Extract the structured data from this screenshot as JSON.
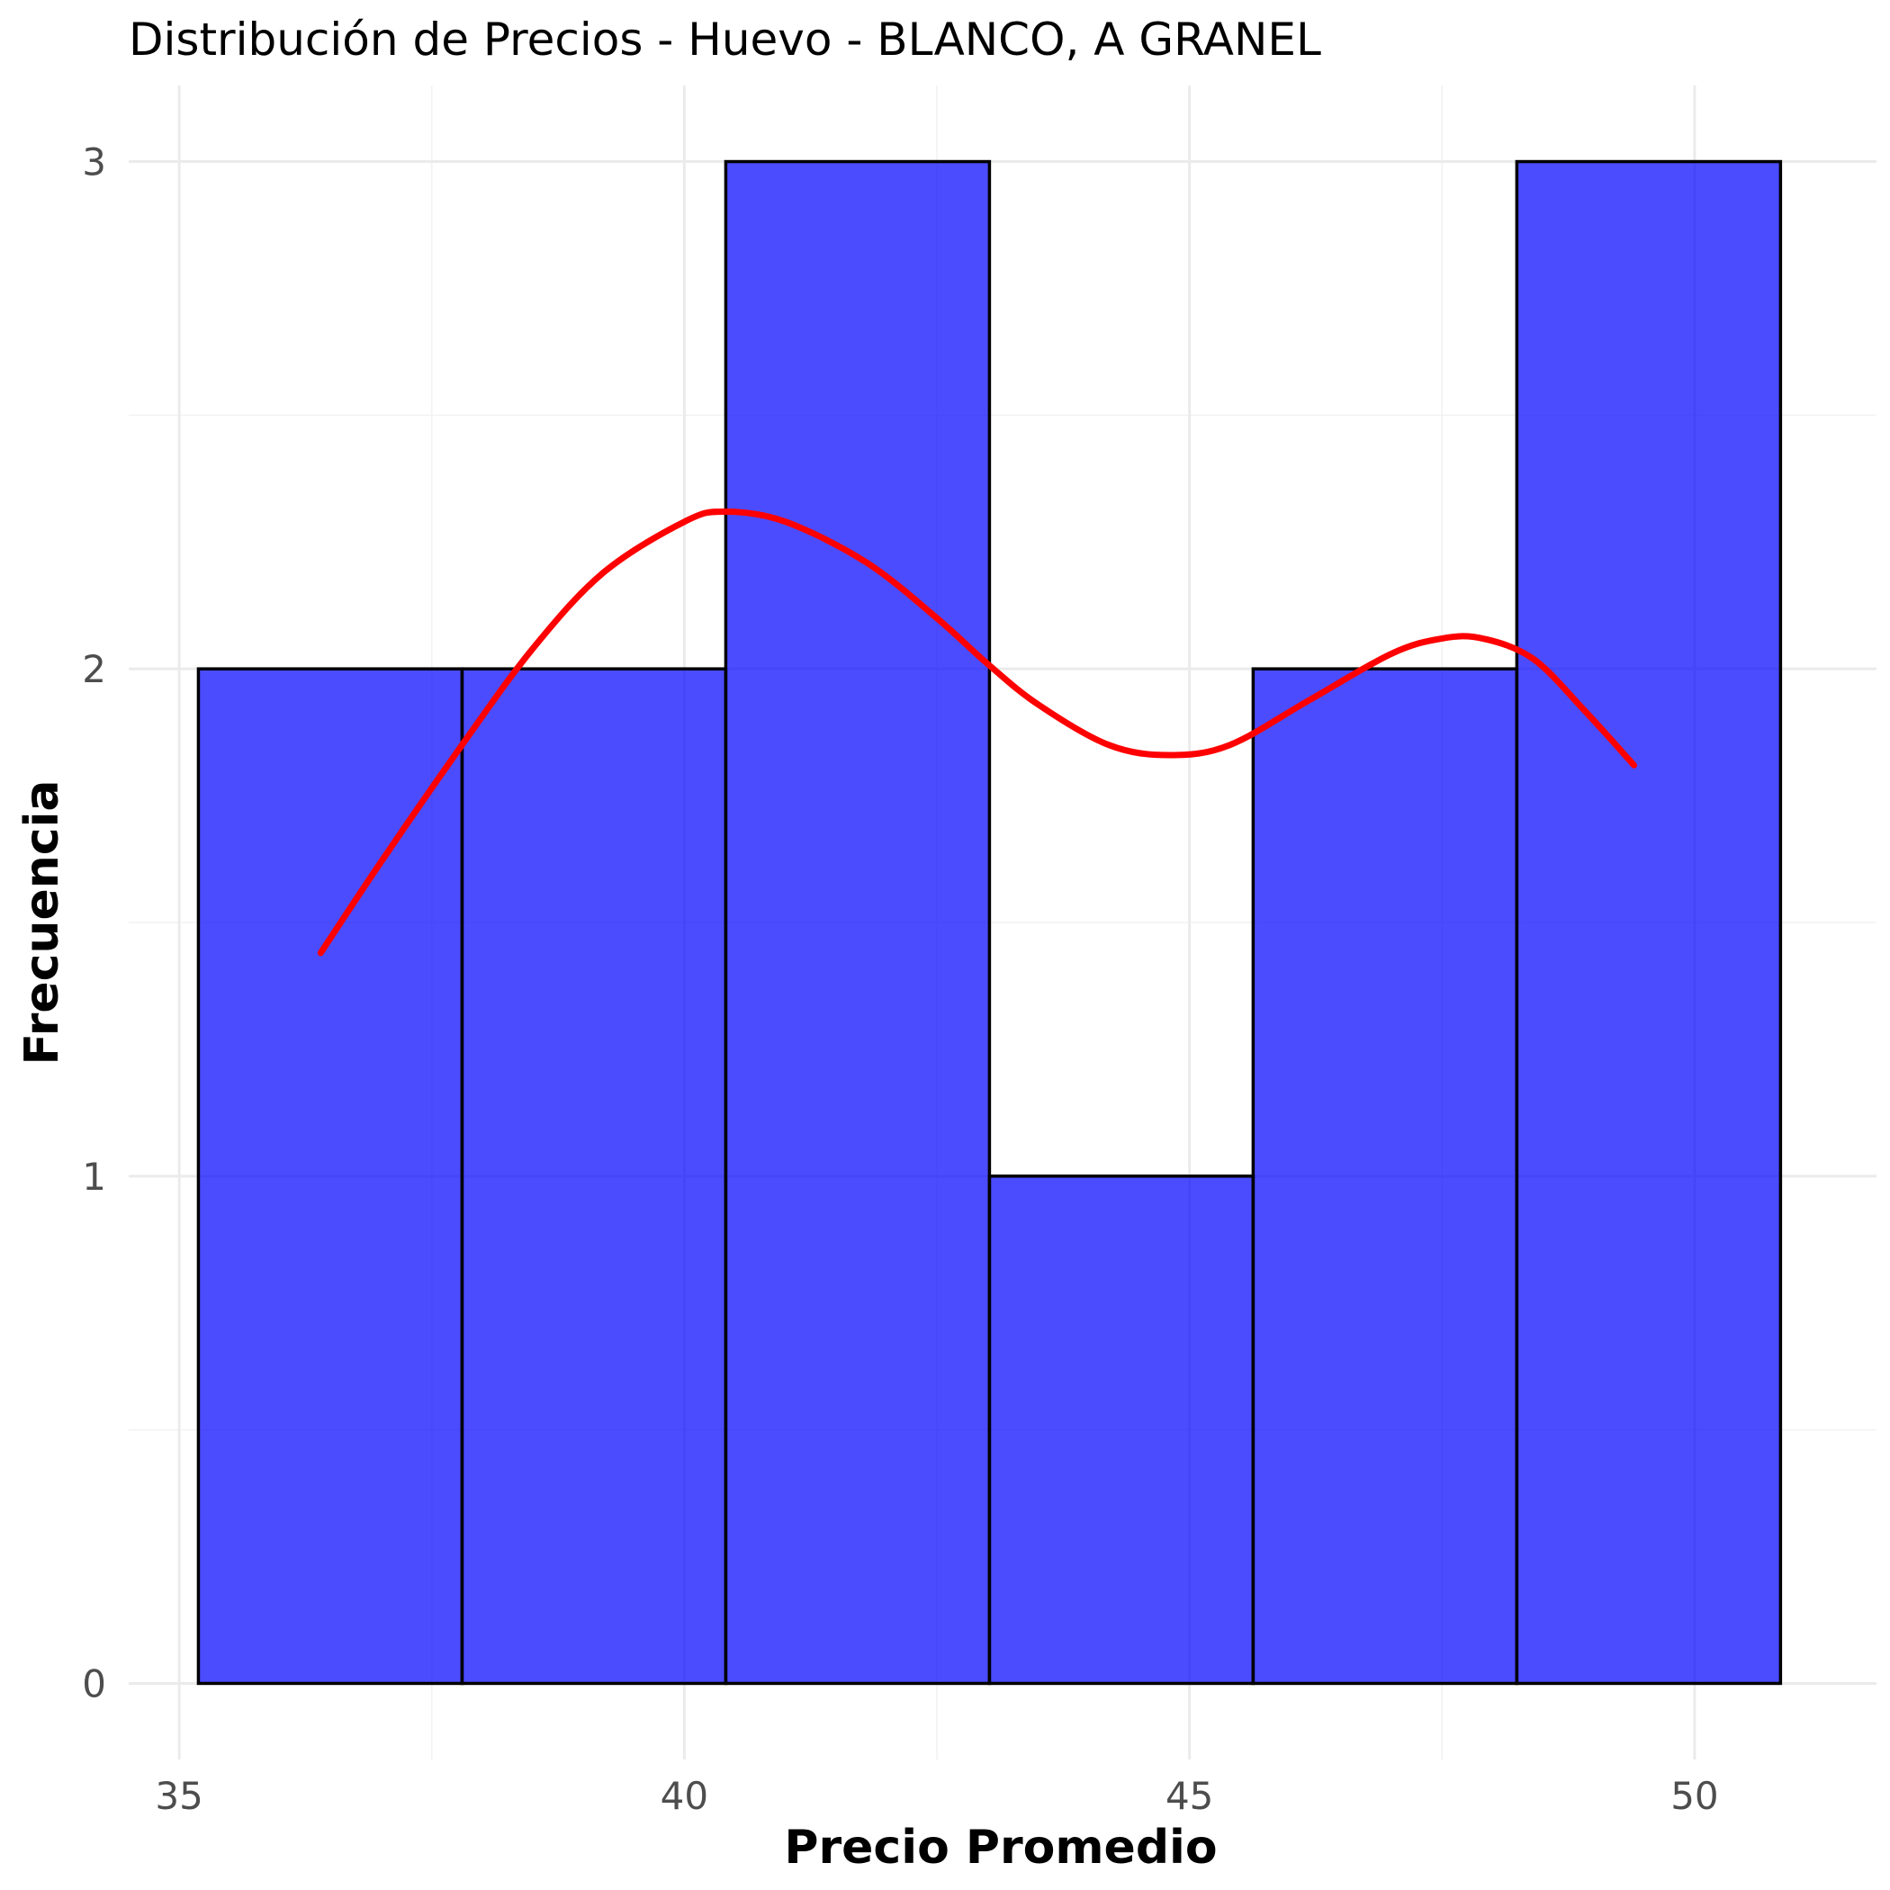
{
  "chart_data": {
    "type": "histogram",
    "title": "Distribución de Precios - Huevo - BLANCO, A GRANEL",
    "xlabel": "Precio Promedio",
    "ylabel": "Frecuencia",
    "xlim": [
      34.5,
      51.8
    ],
    "ylim": [
      -0.15,
      3.15
    ],
    "x_ticks": [
      35,
      40,
      45,
      50
    ],
    "y_ticks": [
      0,
      1,
      2,
      3
    ],
    "bins": [
      {
        "start": 35.19,
        "end": 37.8,
        "count": 2
      },
      {
        "start": 37.8,
        "end": 40.41,
        "count": 2
      },
      {
        "start": 40.41,
        "end": 43.02,
        "count": 3
      },
      {
        "start": 43.02,
        "end": 45.63,
        "count": 1
      },
      {
        "start": 45.63,
        "end": 48.24,
        "count": 2
      },
      {
        "start": 48.24,
        "end": 50.85,
        "count": 3
      }
    ],
    "bar_color": "#0000ff",
    "bar_opacity": 0.7,
    "density_color": "#ff0000",
    "density_curve": {
      "x": [
        36.4,
        37.0,
        37.8,
        38.5,
        39.2,
        40.0,
        40.4,
        41.0,
        41.8,
        42.5,
        43.0,
        43.5,
        44.2,
        44.8,
        45.4,
        46.2,
        47.0,
        47.5,
        47.9,
        48.4,
        48.9,
        49.4
      ],
      "y": [
        1.44,
        1.62,
        1.85,
        2.04,
        2.19,
        2.29,
        2.31,
        2.29,
        2.21,
        2.1,
        2.01,
        1.93,
        1.85,
        1.83,
        1.85,
        1.94,
        2.03,
        2.06,
        2.06,
        2.02,
        1.92,
        1.81
      ]
    },
    "grid": true,
    "legend": "none"
  }
}
